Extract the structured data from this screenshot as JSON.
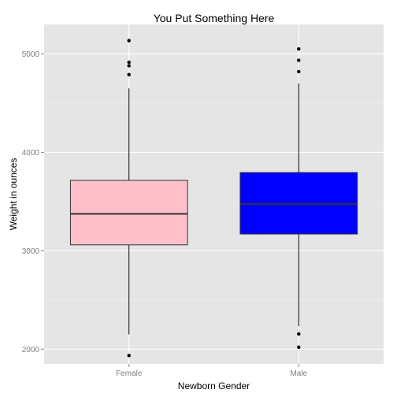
{
  "chart_data": {
    "type": "boxplot",
    "title": "You Put Something Here",
    "xlabel": "Newborn Gender",
    "ylabel": "Weight in ounces",
    "ylim": [
      1850,
      5300
    ],
    "yticks": [
      2000,
      3000,
      4000,
      5000
    ],
    "grid": true,
    "legend": "none",
    "panel_color": "#e5e5e5",
    "grid_major_color": "#ffffff",
    "grid_minor_color": "#f2f2f2",
    "categories": [
      "Female",
      "Male"
    ],
    "boxes": [
      {
        "category": "Female",
        "fill": "#ffc0cb",
        "whisker_low": 2150,
        "q1": 3060,
        "median": 3375,
        "q3": 3715,
        "whisker_high": 4650,
        "outliers": [
          1935,
          4790,
          4880,
          4915,
          5135
        ]
      },
      {
        "category": "Male",
        "fill": "#0000ff",
        "whisker_low": 2235,
        "q1": 3170,
        "median": 3475,
        "q3": 3795,
        "whisker_high": 4700,
        "outliers": [
          2020,
          2155,
          4820,
          4935,
          5050
        ]
      }
    ]
  }
}
